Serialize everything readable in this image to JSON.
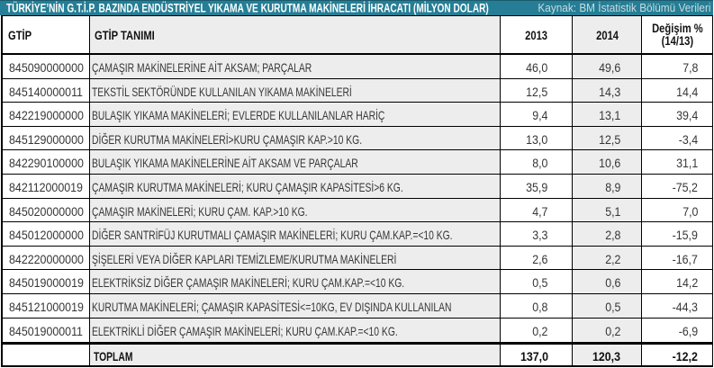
{
  "title_bar": {
    "title": "TÜRKİYE’NİN G.T.İ.P. BAZINDA ENDÜSTRİYEL YIKAMA VE KURUTMA MAKİNELERİ İHRACATI (MİLYON DOLAR)",
    "source_note": "Kaynak: BM İstatistik Bölümü Verileri",
    "background_color": "#257E95",
    "title_color": "#FFFFFF",
    "source_color": "#C9DCE1"
  },
  "table": {
    "columns": {
      "code": "GTİP",
      "name": "GTİP TANIMI",
      "y2013": "2013",
      "y2014": "2014",
      "change_line1": "Değişim %",
      "change_line2": "(14/13)"
    },
    "stripe_color": "#EDEDED",
    "border_color": "#000000",
    "rows": [
      {
        "code": "845090000000",
        "name": "ÇAMAŞIR MAKİNELERİNE AİT AKSAM; PARÇALAR",
        "y2013": "46,0",
        "y2014": "49,6",
        "change": "7,8"
      },
      {
        "code": "845140000011",
        "name": "TEKSTİL SEKTÖRÜNDE KULLANILAN YIKAMA MAKİNELERİ",
        "y2013": "12,5",
        "y2014": "14,3",
        "change": "14,4"
      },
      {
        "code": "842219000000",
        "name": "BULAŞIK YIKAMA MAKİNELERİ; EVLERDE KULLANILANLAR HARİÇ",
        "y2013": "9,4",
        "y2014": "13,1",
        "change": "39,4"
      },
      {
        "code": "845129000000",
        "name": "DİĞER KURUTMA MAKİNELERİ>KURU ÇAMAŞIR KAP.>10 KG.",
        "y2013": "13,0",
        "y2014": "12,5",
        "change": "-3,4"
      },
      {
        "code": "842290100000",
        "name": "BULAŞIK YIKAMA MAKİNELERİNE AİT AKSAM VE PARÇALAR",
        "y2013": "8,0",
        "y2014": "10,6",
        "change": "31,1"
      },
      {
        "code": "842112000019",
        "name": "ÇAMAŞIR KURUTMA MAKİNELERİ; KURU ÇAMAŞIR KAPASİTESİ>6 KG.",
        "y2013": "35,9",
        "y2014": "8,9",
        "change": "-75,2"
      },
      {
        "code": "845020000000",
        "name": "ÇAMAŞIR MAKİNELERİ; KURU ÇAM. KAP.>10 KG.",
        "y2013": "4,7",
        "y2014": "5,1",
        "change": "7,0"
      },
      {
        "code": "845012000000",
        "name": "DİĞER SANTRİFÜJ KURUTMALI ÇAMAŞIR MAKİNELERİ; KURU ÇAM.KAP.=<10 KG.",
        "y2013": "3,3",
        "y2014": "2,8",
        "change": "-15,9"
      },
      {
        "code": "842220000000",
        "name": "ŞİŞELERİ VEYA DİĞER KAPLARI TEMİZLEME/KURUTMA MAKİNELERİ",
        "y2013": "2,6",
        "y2014": "2,2",
        "change": "-16,7"
      },
      {
        "code": "845019000019",
        "name": "ELEKTRİKSİZ DİĞER ÇAMAŞIR MAKİNELERİ; KURU ÇAM.KAP.=<10 KG.",
        "y2013": "0,5",
        "y2014": "0,6",
        "change": "14,2"
      },
      {
        "code": "845121000019",
        "name": "KURUTMA MAKİNELERİ; ÇAMAŞIR KAPASİTESİ<=10KG, EV DIŞINDA KULLANILAN",
        "y2013": "0,8",
        "y2014": "0,5",
        "change": "-44,3"
      },
      {
        "code": "845019000011",
        "name": "ELEKTRİKLİ DİĞER ÇAMAŞIR MAKİNELERİ; KURU ÇAM.KAP.=<10 KG.",
        "y2013": "0,2",
        "y2014": "0,2",
        "change": "-6,9"
      }
    ],
    "total_row": {
      "label": "TOPLAM",
      "y2013": "137,0",
      "y2014": "120,3",
      "change": "-12,2"
    }
  },
  "chart_data": {
    "type": "table",
    "title": "TÜRKİYE’NİN G.T.İ.P. BAZINDA ENDÜSTRİYEL YIKAMA VE KURUTMA MAKİNELERİ İHRACATI (MİLYON DOLAR)",
    "source": "Kaynak: BM İstatistik Bölümü Verileri",
    "columns": [
      "GTİP",
      "GTİP TANIMI",
      "2013",
      "2014",
      "Değişim % (14/13)"
    ],
    "rows": [
      [
        "845090000000",
        "ÇAMAŞIR MAKİNELERİNE AİT AKSAM; PARÇALAR",
        46.0,
        49.6,
        7.8
      ],
      [
        "845140000011",
        "TEKSTİL SEKTÖRÜNDE KULLANILAN YIKAMA MAKİNELERİ",
        12.5,
        14.3,
        14.4
      ],
      [
        "842219000000",
        "BULAŞIK YIKAMA MAKİNELERİ; EVLERDE KULLANILANLAR HARİÇ",
        9.4,
        13.1,
        39.4
      ],
      [
        "845129000000",
        "DİĞER KURUTMA MAKİNELERİ>KURU ÇAMAŞIR KAP.>10 KG.",
        13.0,
        12.5,
        -3.4
      ],
      [
        "842290100000",
        "BULAŞIK YIKAMA MAKİNELERİNE AİT AKSAM VE PARÇALAR",
        8.0,
        10.6,
        31.1
      ],
      [
        "842112000019",
        "ÇAMAŞIR KURUTMA MAKİNELERİ; KURU ÇAMAŞIR KAPASİTESİ>6 KG.",
        35.9,
        8.9,
        -75.2
      ],
      [
        "845020000000",
        "ÇAMAŞIR MAKİNELERİ; KURU ÇAM. KAP.>10 KG.",
        4.7,
        5.1,
        7.0
      ],
      [
        "845012000000",
        "DİĞER SANTRİFÜJ KURUTMALI ÇAMAŞIR MAKİNELERİ; KURU ÇAM.KAP.=<10 KG.",
        3.3,
        2.8,
        -15.9
      ],
      [
        "842220000000",
        "ŞİŞELERİ VEYA DİĞER KAPLARI TEMİZLEME/KURUTMA MAKİNELERİ",
        2.6,
        2.2,
        -16.7
      ],
      [
        "845019000019",
        "ELEKTRİKSİZ DİĞER ÇAMAŞIR MAKİNELERİ; KURU ÇAM.KAP.=<10 KG.",
        0.5,
        0.6,
        14.2
      ],
      [
        "845121000019",
        "KURUTMA MAKİNELERİ; ÇAMAŞIR KAPASİTESİ<=10KG, EV DIŞINDA KULLANILAN",
        0.8,
        0.5,
        -44.3
      ],
      [
        "845019000011",
        "ELEKTRİKLİ DİĞER ÇAMAŞIR MAKİNELERİ; KURU ÇAM.KAP.=<10 KG.",
        0.2,
        0.2,
        -6.9
      ]
    ],
    "total": [
      "",
      "TOPLAM",
      137.0,
      120.3,
      -12.2
    ]
  }
}
